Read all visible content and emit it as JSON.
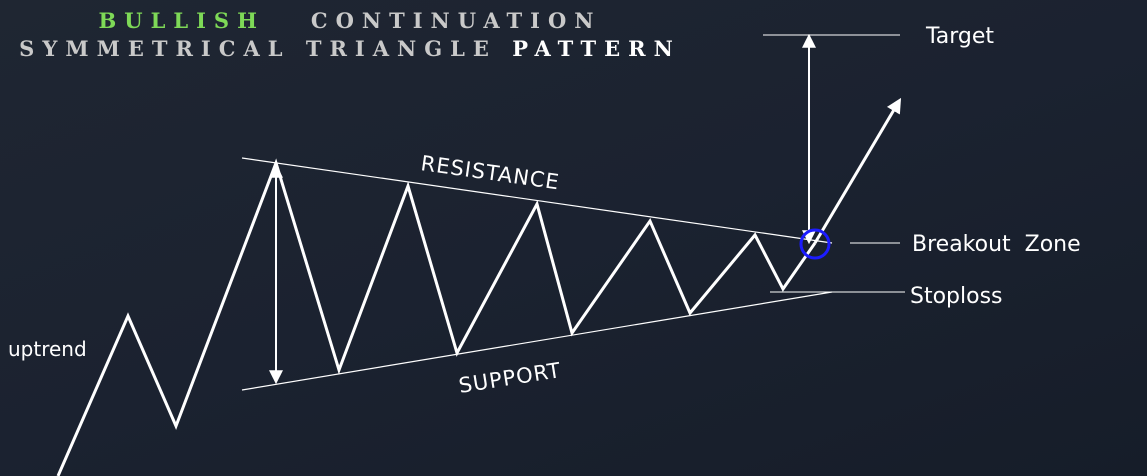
{
  "title": {
    "line1": {
      "part1": "BULLISH",
      "part2": "CONTINUATION"
    },
    "line2": {
      "part1": "SYMMETRICAL TRIANGLE",
      "part2": "PATTERN"
    }
  },
  "labels": {
    "resistance": "RESISTANCE",
    "support": "SUPPORT",
    "uptrend": "uptrend",
    "target": "Target",
    "breakout_zone": "Breakout  Zone",
    "stoploss": "Stoploss"
  },
  "colors": {
    "background": "#1b2230",
    "accent_green": "#7ed957",
    "title_grey": "#c9c9c9",
    "line": "#ffffff",
    "breakout_circle": "#1c1cff"
  },
  "icons": [
    "up-arrow-icon",
    "double-arrow-icon",
    "breakout-circle-icon"
  ]
}
